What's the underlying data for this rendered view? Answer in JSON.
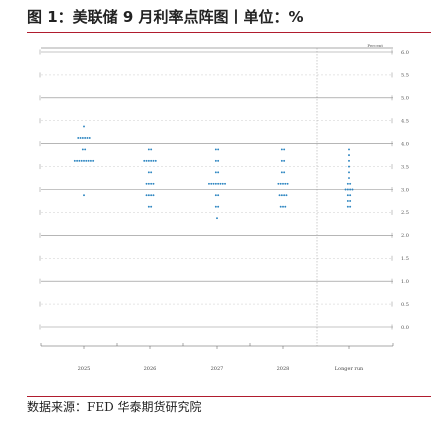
{
  "header": {
    "title": "图 1：美联储 9 月利率点阵图丨单位：%"
  },
  "footer": {
    "source": "数据来源：FED   华泰期货研究院"
  },
  "chart_data": {
    "type": "scatter",
    "title": "",
    "xlabel": "",
    "ylabel": "",
    "unit_label": "Percent",
    "categories": [
      "2025",
      "2026",
      "2027",
      "2028",
      "Longer run"
    ],
    "ylim": [
      0,
      6
    ],
    "yticks": [
      "0.0",
      "0.5",
      "1.0",
      "1.5",
      "2.0",
      "2.5",
      "3.0",
      "3.5",
      "4.0",
      "4.5",
      "5.0",
      "5.5",
      "6.0"
    ],
    "dot_color": "#2e86c1",
    "series": [
      {
        "x": "2025",
        "points": [
          {
            "y": 4.375,
            "n": 1
          },
          {
            "y": 4.125,
            "n": 6
          },
          {
            "y": 3.875,
            "n": 2
          },
          {
            "y": 3.625,
            "n": 9
          },
          {
            "y": 2.875,
            "n": 1
          }
        ]
      },
      {
        "x": "2026",
        "points": [
          {
            "y": 3.875,
            "n": 2
          },
          {
            "y": 3.625,
            "n": 6
          },
          {
            "y": 3.375,
            "n": 2
          },
          {
            "y": 3.125,
            "n": 4
          },
          {
            "y": 2.875,
            "n": 4
          },
          {
            "y": 2.625,
            "n": 2
          }
        ]
      },
      {
        "x": "2027",
        "points": [
          {
            "y": 3.875,
            "n": 2
          },
          {
            "y": 3.625,
            "n": 2
          },
          {
            "y": 3.375,
            "n": 2
          },
          {
            "y": 3.125,
            "n": 8
          },
          {
            "y": 2.875,
            "n": 2
          },
          {
            "y": 2.625,
            "n": 2
          },
          {
            "y": 2.375,
            "n": 1
          }
        ]
      },
      {
        "x": "2028",
        "points": [
          {
            "y": 3.875,
            "n": 2
          },
          {
            "y": 3.625,
            "n": 2
          },
          {
            "y": 3.375,
            "n": 2
          },
          {
            "y": 3.125,
            "n": 5
          },
          {
            "y": 2.875,
            "n": 4
          },
          {
            "y": 2.625,
            "n": 3
          }
        ]
      },
      {
        "x": "Longer run",
        "points": [
          {
            "y": 3.875,
            "n": 1
          },
          {
            "y": 3.75,
            "n": 1
          },
          {
            "y": 3.625,
            "n": 1
          },
          {
            "y": 3.5,
            "n": 1
          },
          {
            "y": 3.375,
            "n": 1
          },
          {
            "y": 3.25,
            "n": 1
          },
          {
            "y": 3.125,
            "n": 2
          },
          {
            "y": 3.0,
            "n": 4
          },
          {
            "y": 2.875,
            "n": 2
          },
          {
            "y": 2.75,
            "n": 2
          },
          {
            "y": 2.625,
            "n": 2
          }
        ]
      }
    ]
  }
}
